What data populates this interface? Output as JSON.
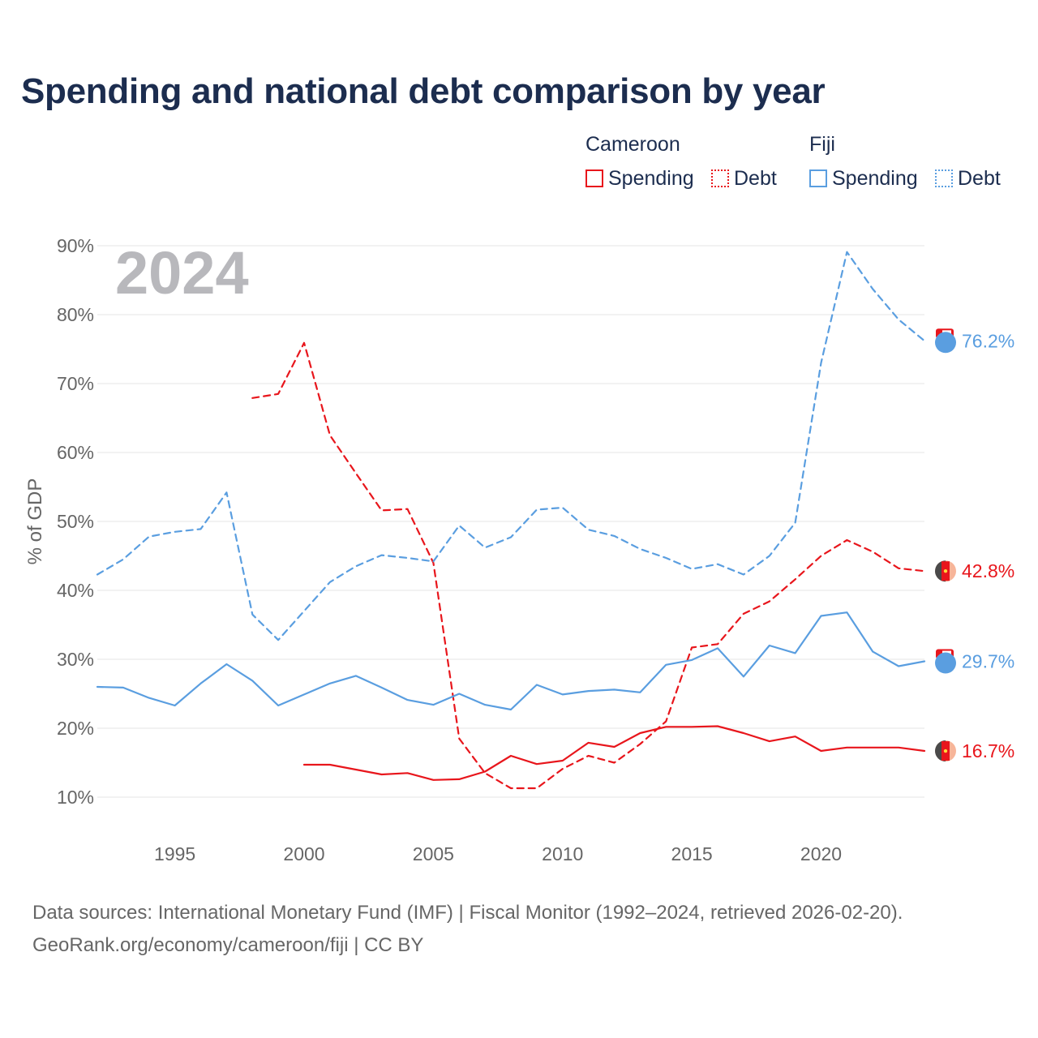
{
  "title": "Spending and national debt comparison by year",
  "legend": {
    "groups": [
      {
        "country": "Cameroon",
        "color": "#e8161c",
        "items": [
          "Spending",
          "Debt"
        ]
      },
      {
        "country": "Fiji",
        "color": "#5a9ee0",
        "items": [
          "Spending",
          "Debt"
        ]
      }
    ]
  },
  "year_watermark": "2024",
  "footer": {
    "line1": "Data sources: International Monetary Fund (IMF) | Fiscal Monitor (1992–2024, retrieved 2026-02-20).",
    "line2": "GeoRank.org/economy/cameroon/fiji | CC BY"
  },
  "colors": {
    "cameroon": "#e8161c",
    "fiji": "#5a9ee0",
    "title": "#1c2d4f",
    "axis_text": "#666666",
    "grid": "#e6e6e6",
    "watermark": "#b8b8bc"
  },
  "chart_data": {
    "type": "line",
    "title": "Spending and national debt comparison by year",
    "ylabel": "% of GDP",
    "xlabel": "",
    "xlim": [
      1992,
      2024
    ],
    "ylim": [
      5,
      90
    ],
    "yticks": [
      10,
      20,
      30,
      40,
      50,
      60,
      70,
      80,
      90
    ],
    "ytick_labels": [
      "10%",
      "20%",
      "30%",
      "40%",
      "50%",
      "60%",
      "70%",
      "80%",
      "90%"
    ],
    "xticks": [
      1995,
      2000,
      2005,
      2010,
      2015,
      2020
    ],
    "xtick_labels": [
      "1995",
      "2000",
      "2005",
      "2010",
      "2015",
      "2020"
    ],
    "grid": true,
    "series": [
      {
        "name": "Cameroon Spending",
        "country": "Cameroon",
        "metric": "Spending",
        "color": "#e8161c",
        "dashed": false,
        "x": [
          2000,
          2001,
          2002,
          2003,
          2004,
          2005,
          2006,
          2007,
          2008,
          2009,
          2010,
          2011,
          2012,
          2013,
          2014,
          2015,
          2016,
          2017,
          2018,
          2019,
          2020,
          2021,
          2022,
          2023,
          2024
        ],
        "values": [
          14.7,
          14.7,
          14.0,
          13.3,
          13.5,
          12.5,
          12.6,
          13.7,
          16.0,
          14.8,
          15.3,
          17.9,
          17.3,
          19.3,
          20.2,
          20.2,
          20.3,
          19.3,
          18.1,
          18.8,
          16.7,
          17.2,
          17.2,
          17.2,
          16.7
        ],
        "end_label": "16.7%"
      },
      {
        "name": "Cameroon Debt",
        "country": "Cameroon",
        "metric": "Debt",
        "color": "#e8161c",
        "dashed": true,
        "x": [
          1998,
          1999,
          2000,
          2001,
          2002,
          2003,
          2004,
          2005,
          2006,
          2007,
          2008,
          2009,
          2010,
          2011,
          2012,
          2013,
          2014,
          2015,
          2016,
          2017,
          2018,
          2019,
          2020,
          2021,
          2022,
          2023,
          2024
        ],
        "values": [
          67.9,
          68.5,
          75.9,
          62.5,
          57.0,
          51.6,
          51.8,
          44.0,
          18.5,
          13.5,
          11.3,
          11.3,
          14.1,
          16.0,
          15.0,
          17.7,
          21.0,
          31.7,
          32.2,
          36.6,
          38.4,
          41.6,
          45.0,
          47.3,
          45.6,
          43.2,
          42.8
        ],
        "end_label": "42.8%"
      },
      {
        "name": "Fiji Spending",
        "country": "Fiji",
        "metric": "Spending",
        "color": "#5a9ee0",
        "dashed": false,
        "x": [
          1992,
          1993,
          1994,
          1995,
          1996,
          1997,
          1998,
          1999,
          2000,
          2001,
          2002,
          2003,
          2004,
          2005,
          2006,
          2007,
          2008,
          2009,
          2010,
          2011,
          2012,
          2013,
          2014,
          2015,
          2016,
          2017,
          2018,
          2019,
          2020,
          2021,
          2022,
          2023,
          2024
        ],
        "values": [
          26.0,
          25.9,
          24.4,
          23.3,
          26.5,
          29.3,
          26.9,
          23.3,
          24.9,
          26.5,
          27.6,
          25.9,
          24.1,
          23.4,
          25.0,
          23.4,
          22.7,
          26.3,
          24.9,
          25.4,
          25.6,
          25.2,
          29.2,
          29.9,
          31.6,
          27.5,
          32.0,
          30.9,
          36.3,
          36.8,
          31.1,
          29.0,
          29.7
        ],
        "end_label": "29.7%"
      },
      {
        "name": "Fiji Debt",
        "country": "Fiji",
        "metric": "Debt",
        "color": "#5a9ee0",
        "dashed": true,
        "x": [
          1992,
          1993,
          1994,
          1995,
          1996,
          1997,
          1998,
          1999,
          2000,
          2001,
          2002,
          2003,
          2004,
          2005,
          2006,
          2007,
          2008,
          2009,
          2010,
          2011,
          2012,
          2013,
          2014,
          2015,
          2016,
          2017,
          2018,
          2019,
          2020,
          2021,
          2022,
          2023,
          2024
        ],
        "values": [
          42.3,
          44.5,
          47.8,
          48.5,
          48.9,
          54.2,
          36.5,
          32.8,
          37.0,
          41.2,
          43.5,
          45.1,
          44.7,
          44.2,
          49.4,
          46.2,
          47.7,
          51.7,
          52.0,
          48.8,
          47.9,
          46.0,
          44.7,
          43.1,
          43.8,
          42.3,
          45.0,
          49.8,
          73.0,
          89.1,
          83.7,
          79.3,
          76.2
        ],
        "end_label": "76.2%"
      }
    ]
  }
}
